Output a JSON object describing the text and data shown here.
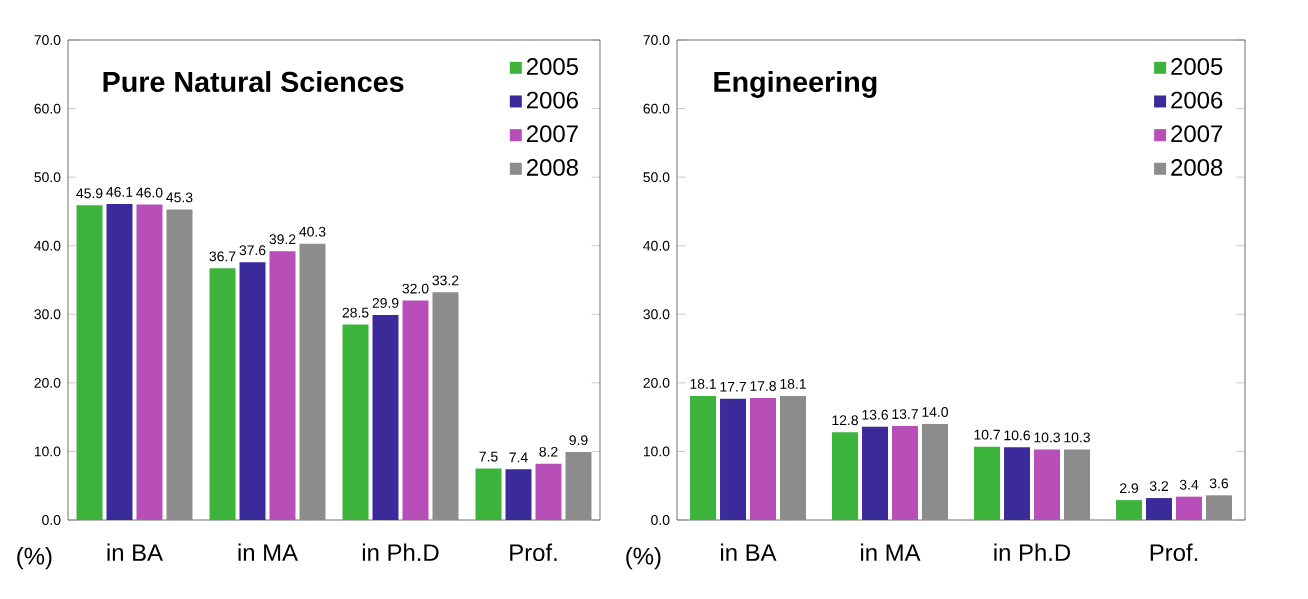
{
  "chart_data": [
    {
      "type": "bar",
      "title": "Pure Natural Sciences",
      "ylabel": "(%)",
      "categories": [
        "in BA",
        "in MA",
        "in Ph.D",
        "Prof."
      ],
      "series": [
        {
          "name": "2005",
          "color": "#3cb43c",
          "values": [
            45.9,
            36.7,
            28.5,
            7.5
          ],
          "value_labels": [
            "45.9",
            "36.7",
            "28.5",
            "7.5"
          ]
        },
        {
          "name": "2006",
          "color": "#3b2a9a",
          "values": [
            46.1,
            37.6,
            29.9,
            7.4
          ],
          "value_labels": [
            "46.1",
            "37.6",
            "29.9",
            "7.4"
          ]
        },
        {
          "name": "2007",
          "color": "#b84fb8",
          "values": [
            46.0,
            39.2,
            32.0,
            8.2
          ],
          "value_labels": [
            "46.0",
            "39.2",
            "32.0",
            "8.2"
          ]
        },
        {
          "name": "2008",
          "color": "#8c8c8c",
          "values": [
            45.3,
            40.3,
            33.2,
            9.9
          ],
          "value_labels": [
            "45.3",
            "40.3",
            "33.2",
            "9.9"
          ]
        }
      ],
      "ylim": [
        0,
        70
      ],
      "yticks": [
        {
          "value": 0,
          "label": "0.0"
        },
        {
          "value": 10,
          "label": "10.0"
        },
        {
          "value": 20,
          "label": "20.0"
        },
        {
          "value": 30,
          "label": "30.0"
        },
        {
          "value": 40,
          "label": "40.0"
        },
        {
          "value": 50,
          "label": "50.0"
        },
        {
          "value": 60,
          "label": "60.0"
        },
        {
          "value": 70,
          "label": "70.0"
        }
      ],
      "legend": "top right",
      "grid": false
    },
    {
      "type": "bar",
      "title": "Engineering",
      "ylabel": "(%)",
      "categories": [
        "in BA",
        "in MA",
        "in Ph.D",
        "Prof."
      ],
      "series": [
        {
          "name": "2005",
          "color": "#3cb43c",
          "values": [
            18.1,
            12.8,
            10.7,
            2.9
          ],
          "value_labels": [
            "18.1",
            "12.8",
            "10.7",
            "2.9"
          ]
        },
        {
          "name": "2006",
          "color": "#3b2a9a",
          "values": [
            17.7,
            13.6,
            10.6,
            3.2
          ],
          "value_labels": [
            "17.7",
            "13.6",
            "10.6",
            "3.2"
          ]
        },
        {
          "name": "2007",
          "color": "#b84fb8",
          "values": [
            17.8,
            13.7,
            10.3,
            3.4
          ],
          "value_labels": [
            "17.8",
            "13.7",
            "10.3",
            "3.4"
          ]
        },
        {
          "name": "2008",
          "color": "#8c8c8c",
          "values": [
            18.1,
            14.0,
            10.3,
            3.6
          ],
          "value_labels": [
            "18.1",
            "14.0",
            "10.3",
            "3.6"
          ]
        }
      ],
      "ylim": [
        0,
        70
      ],
      "yticks": [
        {
          "value": 0,
          "label": "0.0"
        },
        {
          "value": 10,
          "label": "10.0"
        },
        {
          "value": 20,
          "label": "20.0"
        },
        {
          "value": 30,
          "label": "30.0"
        },
        {
          "value": 40,
          "label": "40.0"
        },
        {
          "value": 50,
          "label": "50.0"
        },
        {
          "value": 60,
          "label": "60.0"
        },
        {
          "value": 70,
          "label": "70.0"
        }
      ],
      "legend": "top right",
      "grid": false
    }
  ]
}
